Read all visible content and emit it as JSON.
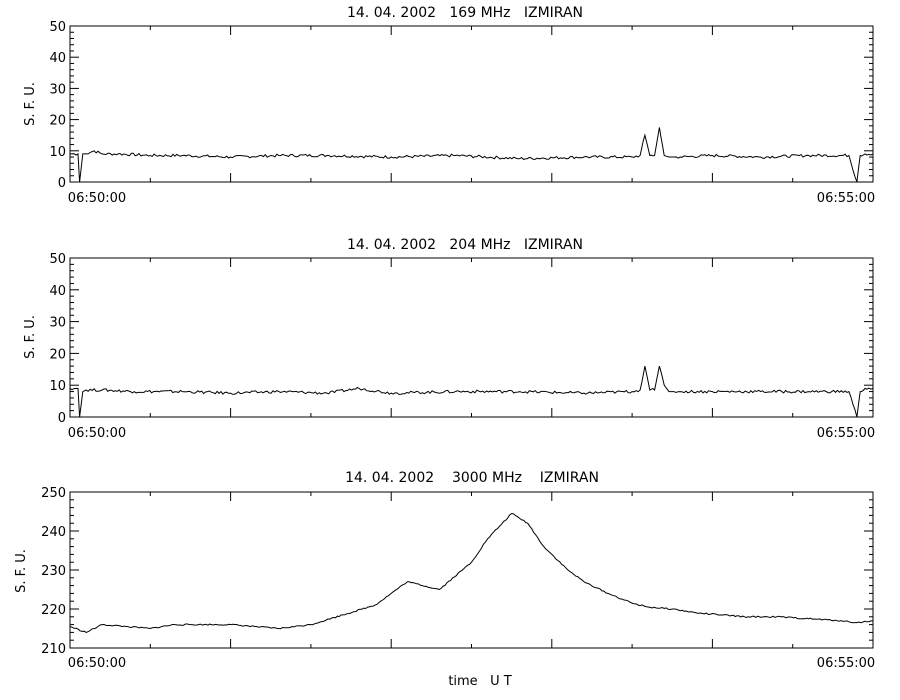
{
  "chart_data": [
    {
      "type": "line",
      "title": "14. 04. 2002   169 MHz   IZMIRAN",
      "ylabel": "S. F. U.",
      "xlabel": "",
      "xlim": [
        "06:50:00",
        "06:55:00"
      ],
      "ylim": [
        0,
        50
      ],
      "yticks": [
        "0",
        "10",
        "20",
        "30",
        "40",
        "50"
      ],
      "xtick_labels": [
        "06:50:00",
        "06:55:00"
      ],
      "x_minutes": [
        0,
        0.05,
        0.06,
        0.08,
        0.1,
        0.15,
        0.2,
        0.3,
        0.5,
        0.7,
        1.0,
        1.3,
        1.6,
        2.0,
        2.4,
        2.8,
        3.2,
        3.5,
        3.55,
        3.58,
        3.61,
        3.64,
        3.67,
        3.7,
        3.73,
        3.76,
        3.8,
        4.0,
        4.3,
        4.6,
        4.85,
        4.9,
        4.92,
        4.95,
        5.0
      ],
      "values": [
        9,
        9,
        0,
        9,
        9,
        10,
        9,
        9,
        8.5,
        8.5,
        8,
        8.5,
        8.5,
        8,
        8.5,
        7.5,
        8,
        8,
        8.5,
        15,
        8.5,
        8.5,
        17.5,
        8.5,
        8,
        8,
        8,
        8.5,
        8,
        8.5,
        8.5,
        0,
        8.5,
        9,
        9
      ]
    },
    {
      "type": "line",
      "title": "14. 04. 2002   204 MHz   IZMIRAN",
      "ylabel": "S. F. U.",
      "xlabel": "",
      "xlim": [
        "06:50:00",
        "06:55:00"
      ],
      "ylim": [
        0,
        50
      ],
      "yticks": [
        "0",
        "10",
        "20",
        "30",
        "40",
        "50"
      ],
      "xtick_labels": [
        "06:50:00",
        "06:55:00"
      ],
      "x_minutes": [
        0,
        0.05,
        0.06,
        0.08,
        0.1,
        0.2,
        0.4,
        0.7,
        1.0,
        1.3,
        1.6,
        1.8,
        2.0,
        2.4,
        2.8,
        3.2,
        3.5,
        3.55,
        3.58,
        3.61,
        3.64,
        3.67,
        3.7,
        3.73,
        3.76,
        3.8,
        4.0,
        4.3,
        4.6,
        4.85,
        4.9,
        4.92,
        4.95,
        5.0
      ],
      "values": [
        9,
        9,
        0,
        8,
        8.5,
        8.5,
        8,
        8,
        7.5,
        8,
        7.5,
        9,
        7.5,
        8,
        8,
        7.5,
        8,
        8.5,
        16,
        8.5,
        8.5,
        16,
        10,
        8,
        8,
        8,
        8,
        8,
        8,
        8,
        0,
        8,
        9,
        9
      ]
    },
    {
      "type": "line",
      "title": "14. 04. 2002    3000 MHz    IZMIRAN",
      "ylabel": "S. F. U.",
      "xlabel": "time   U T",
      "xlim": [
        "06:50:00",
        "06:55:00"
      ],
      "ylim": [
        210,
        250
      ],
      "yticks": [
        "210",
        "220",
        "230",
        "240",
        "250"
      ],
      "xtick_labels": [
        "06:50:00",
        "06:55:00"
      ],
      "x_minutes": [
        0,
        0.1,
        0.2,
        0.35,
        0.5,
        0.65,
        0.8,
        1.0,
        1.15,
        1.3,
        1.5,
        1.7,
        1.9,
        2.1,
        2.3,
        2.5,
        2.6,
        2.75,
        2.85,
        2.95,
        3.1,
        3.2,
        3.35,
        3.5,
        3.6,
        3.75,
        3.9,
        4.05,
        4.2,
        4.4,
        4.6,
        4.8,
        4.9,
        5.0
      ],
      "values": [
        215.5,
        214,
        216,
        215.5,
        215,
        216,
        216,
        216,
        215.5,
        215,
        216,
        218.5,
        221,
        227,
        225,
        232,
        238,
        244.5,
        242,
        236,
        230,
        227,
        224,
        221.5,
        220.5,
        220,
        219,
        218.5,
        218,
        218,
        217.5,
        217,
        216.5,
        217
      ]
    }
  ]
}
